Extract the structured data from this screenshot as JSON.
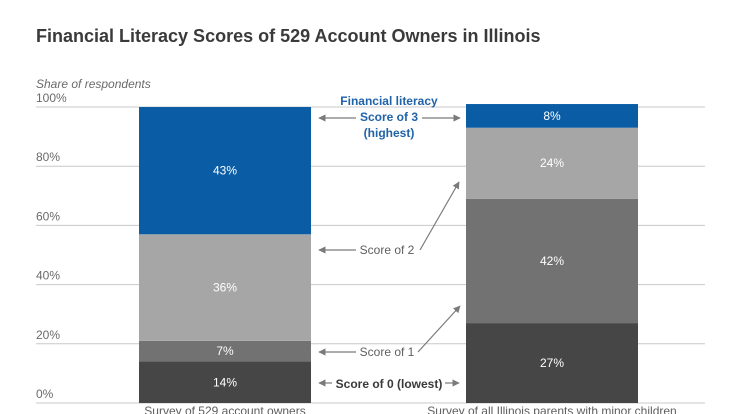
{
  "chart_data": {
    "type": "bar",
    "stacked": true,
    "title": "Financial Literacy Scores of 529 Account Owners in Illinois",
    "ylabel": "Share of respondents",
    "ylim": [
      0,
      100
    ],
    "yticks": [
      "0%",
      "20%",
      "40%",
      "60%",
      "80%",
      "100%"
    ],
    "categories": [
      "Survey of 529 account owners",
      "Survey of all Illinois parents with minor children"
    ],
    "series": [
      {
        "name": "Score of 0 (lowest)",
        "values": [
          14,
          27
        ],
        "labels": [
          "14%",
          "27%"
        ],
        "color": "#464646"
      },
      {
        "name": "Score of 1",
        "values": [
          7,
          42
        ],
        "labels": [
          "7%",
          "42%"
        ],
        "color": "#727272"
      },
      {
        "name": "Score of 2",
        "values": [
          36,
          24
        ],
        "labels": [
          "36%",
          "24%"
        ],
        "color": "#a6a6a6"
      },
      {
        "name": "Score of 3 (highest)",
        "values": [
          43,
          8
        ],
        "labels": [
          "43%",
          "8%"
        ],
        "color": "#0a5da5"
      }
    ],
    "annotations": {
      "legend_top": [
        "Financial literacy",
        "Score of 3",
        "(highest)"
      ],
      "score2": "Score of 2",
      "score1": "Score of 1",
      "score0": "Score of 0 (lowest)"
    },
    "colors": {
      "accent": "#1f63a8",
      "grid": "#c8c8c8",
      "text": "#5e5e5e",
      "arrow": "#7a7a7a"
    }
  }
}
